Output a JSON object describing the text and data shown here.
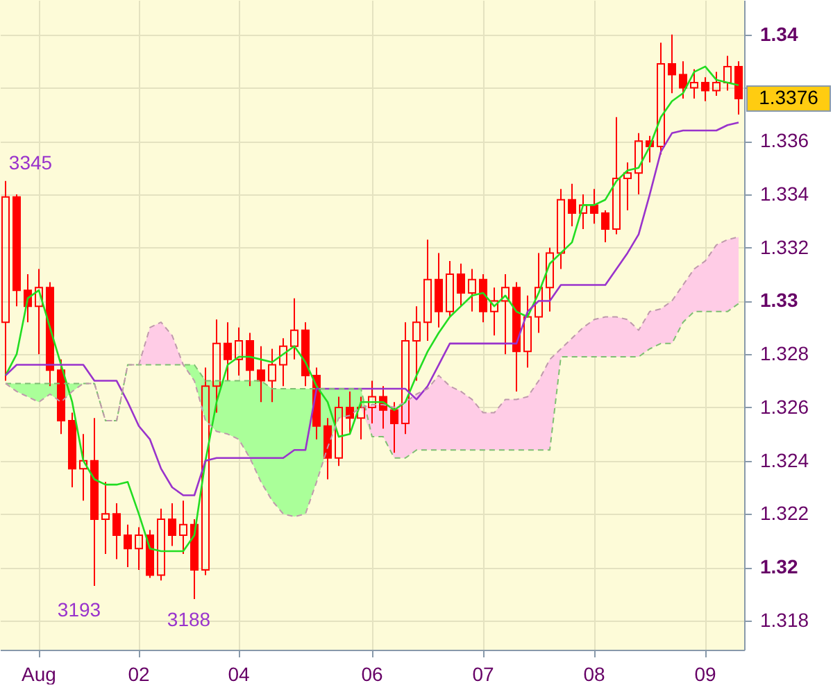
{
  "chart_data": {
    "type": "candlestick",
    "color": "#ff0000",
    "grid": true,
    "categories": [
      null,
      null,
      null,
      "Aug",
      null,
      null,
      null,
      null,
      null,
      null,
      null,
      null,
      "02",
      null,
      null,
      null,
      null,
      null,
      null,
      null,
      null,
      "04",
      null,
      null,
      null,
      null,
      null,
      null,
      null,
      null,
      null,
      null,
      null,
      "06",
      null,
      null,
      null,
      null,
      null,
      null,
      null,
      null,
      null,
      "07",
      null,
      null,
      null,
      null,
      null,
      null,
      null,
      null,
      null,
      "08",
      null,
      null,
      null,
      null,
      null,
      null,
      null,
      null,
      null,
      "09",
      null,
      null,
      null
    ],
    "ohlc": [
      [
        1.3292,
        1.3345,
        1.327,
        1.3339
      ],
      [
        1.3339,
        1.334,
        1.3298,
        1.3304
      ],
      [
        1.3304,
        1.331,
        1.3292,
        1.3298
      ],
      [
        1.3298,
        1.3312,
        1.328,
        1.3305
      ],
      [
        1.3305,
        1.3307,
        1.3268,
        1.3274
      ],
      [
        1.3274,
        1.3278,
        1.325,
        1.3255
      ],
      [
        1.3255,
        1.3258,
        1.323,
        1.3237
      ],
      [
        1.3237,
        1.325,
        1.3225,
        1.324
      ],
      [
        1.324,
        1.3256,
        1.3193,
        1.3218
      ],
      [
        1.3218,
        1.3232,
        1.3205,
        1.322
      ],
      [
        1.322,
        1.3224,
        1.3203,
        1.3212
      ],
      [
        1.3212,
        1.3216,
        1.32,
        1.3207
      ],
      [
        1.3207,
        1.3215,
        1.3199,
        1.3212
      ],
      [
        1.3212,
        1.3214,
        1.3196,
        1.3197
      ],
      [
        1.3197,
        1.3222,
        1.3195,
        1.3218
      ],
      [
        1.3218,
        1.3224,
        1.3208,
        1.3212
      ],
      [
        1.3212,
        1.3225,
        1.3205,
        1.3216
      ],
      [
        1.3216,
        1.3218,
        1.3188,
        1.3199
      ],
      [
        1.3199,
        1.3275,
        1.3197,
        1.3268
      ],
      [
        1.3268,
        1.3293,
        1.3258,
        1.3284
      ],
      [
        1.3284,
        1.3292,
        1.327,
        1.3278
      ],
      [
        1.3278,
        1.329,
        1.3272,
        1.3285
      ],
      [
        1.3285,
        1.3288,
        1.3268,
        1.3274
      ],
      [
        1.3274,
        1.3283,
        1.3262,
        1.327
      ],
      [
        1.327,
        1.3282,
        1.3262,
        1.3276
      ],
      [
        1.3276,
        1.3286,
        1.3268,
        1.3283
      ],
      [
        1.3283,
        1.3301,
        1.3278,
        1.3289
      ],
      [
        1.3289,
        1.3292,
        1.3268,
        1.3272
      ],
      [
        1.3272,
        1.3275,
        1.3248,
        1.3253
      ],
      [
        1.3253,
        1.3256,
        1.3233,
        1.3241
      ],
      [
        1.3241,
        1.3264,
        1.3238,
        1.326
      ],
      [
        1.326,
        1.3266,
        1.325,
        1.3256
      ],
      [
        1.3256,
        1.3264,
        1.3248,
        1.326
      ],
      [
        1.326,
        1.327,
        1.3254,
        1.3264
      ],
      [
        1.3264,
        1.3268,
        1.3252,
        1.3259
      ],
      [
        1.3259,
        1.3262,
        1.3243,
        1.3254
      ],
      [
        1.3254,
        1.3292,
        1.325,
        1.3285
      ],
      [
        1.3285,
        1.3298,
        1.327,
        1.3292
      ],
      [
        1.3292,
        1.3323,
        1.3285,
        1.3308
      ],
      [
        1.3308,
        1.3318,
        1.329,
        1.3296
      ],
      [
        1.3296,
        1.3315,
        1.3294,
        1.331
      ],
      [
        1.331,
        1.3314,
        1.3298,
        1.3303
      ],
      [
        1.3303,
        1.3312,
        1.3296,
        1.3308
      ],
      [
        1.3308,
        1.331,
        1.3292,
        1.3296
      ],
      [
        1.3296,
        1.3305,
        1.3287,
        1.33
      ],
      [
        1.33,
        1.331,
        1.328,
        1.3305
      ],
      [
        1.3305,
        1.3307,
        1.3266,
        1.3281
      ],
      [
        1.3281,
        1.3302,
        1.3275,
        1.3294
      ],
      [
        1.3294,
        1.3318,
        1.3288,
        1.3305
      ],
      [
        1.3305,
        1.332,
        1.3296,
        1.3318
      ],
      [
        1.3318,
        1.3342,
        1.3312,
        1.3338
      ],
      [
        1.3338,
        1.3344,
        1.3328,
        1.3333
      ],
      [
        1.3333,
        1.334,
        1.3327,
        1.3336
      ],
      [
        1.3336,
        1.3342,
        1.3329,
        1.3333
      ],
      [
        1.3333,
        1.3334,
        1.3322,
        1.3327
      ],
      [
        1.3327,
        1.3369,
        1.3325,
        1.3346
      ],
      [
        1.3346,
        1.3352,
        1.3334,
        1.3348
      ],
      [
        1.3348,
        1.3363,
        1.334,
        1.336
      ],
      [
        1.336,
        1.3362,
        1.3352,
        1.3358
      ],
      [
        1.3358,
        1.3397,
        1.3355,
        1.3389
      ],
      [
        1.3389,
        1.34,
        1.3378,
        1.3385
      ],
      [
        1.3385,
        1.339,
        1.3376,
        1.338
      ],
      [
        1.338,
        1.3387,
        1.3376,
        1.3382
      ],
      [
        1.3382,
        1.3384,
        1.3375,
        1.3379
      ],
      [
        1.3379,
        1.3386,
        1.3377,
        1.3382
      ],
      [
        1.3382,
        1.3392,
        1.3379,
        1.3388
      ],
      [
        1.3388,
        1.339,
        1.337,
        1.3376
      ]
    ],
    "series": [
      {
        "type": "line",
        "color": "#22dd22",
        "values": [
          1.3272,
          1.328,
          1.3301,
          1.3304,
          1.329,
          1.3276,
          1.3262,
          1.324,
          1.3233,
          1.3231,
          1.3231,
          1.3232,
          1.322,
          1.3207,
          1.3206,
          1.3206,
          1.3206,
          1.3212,
          1.324,
          1.3262,
          1.3276,
          1.3279,
          1.3279,
          1.3278,
          1.3277,
          1.328,
          1.3283,
          1.3277,
          1.3268,
          1.3262,
          1.3249,
          1.325,
          1.3262,
          1.3262,
          1.3262,
          1.3259,
          1.3262,
          1.3272,
          1.3281,
          1.3288,
          1.3294,
          1.3298,
          1.3302,
          1.3303,
          1.3298,
          1.3302,
          1.3296,
          1.3294,
          1.3303,
          1.3314,
          1.3318,
          1.3322,
          1.3336,
          1.3336,
          1.3338,
          1.3345,
          1.3349,
          1.335,
          1.3358,
          1.3369,
          1.3375,
          1.3378,
          1.3386,
          1.3388,
          1.3383,
          1.3382,
          1.3381
        ]
      },
      {
        "type": "line",
        "color": "#9933cc",
        "values": [
          1.3272,
          1.3276,
          1.3276,
          1.3276,
          1.3276,
          1.3276,
          1.3276,
          1.3276,
          1.327,
          1.327,
          1.327,
          1.3262,
          1.3253,
          1.3248,
          1.3237,
          1.323,
          1.3227,
          1.3227,
          1.324,
          1.3241,
          1.3241,
          1.3241,
          1.3241,
          1.3241,
          1.3241,
          1.3241,
          1.3244,
          1.3244,
          1.3267,
          1.3267,
          1.3267,
          1.3267,
          1.3267,
          1.3267,
          1.3267,
          1.3267,
          1.3267,
          1.3263,
          1.3268,
          1.3276,
          1.3284,
          1.3284,
          1.3284,
          1.3284,
          1.3284,
          1.3284,
          1.3284,
          1.3296,
          1.33,
          1.33,
          1.3306,
          1.3306,
          1.3306,
          1.3306,
          1.3306,
          1.3312,
          1.3318,
          1.3325,
          1.334,
          1.3356,
          1.3363,
          1.3364,
          1.3364,
          1.3364,
          1.3364,
          1.3366,
          1.3367
        ]
      },
      {
        "type": "area",
        "color": "#aaff99",
        "line_style": "dashed",
        "values": [
          1.3269,
          1.3269,
          1.3269,
          1.3269,
          1.3269,
          1.3269,
          1.3269,
          1.3269,
          1.3269,
          1.3255,
          1.3255,
          1.3276,
          1.3276,
          1.3276,
          1.3276,
          1.3276,
          1.3276,
          1.3276,
          1.327,
          1.327,
          1.327,
          1.327,
          1.327,
          1.327,
          1.3267,
          1.3267,
          1.3267,
          1.3267,
          1.3267,
          1.3267,
          1.3267,
          1.3267,
          1.3267,
          1.3249,
          1.3249,
          1.3241,
          1.3241,
          1.3244,
          1.3244,
          1.3244,
          1.3244,
          1.3244,
          1.3244,
          1.3244,
          1.3244,
          1.3244,
          1.3244,
          1.3244,
          1.3244,
          1.3244,
          1.3279,
          1.3279,
          1.3279,
          1.3279,
          1.3279,
          1.3279,
          1.3279,
          1.3279,
          1.3282,
          1.3284,
          1.3284,
          1.3292,
          1.3296,
          1.3296,
          1.3296,
          1.3296,
          1.3299
        ]
      },
      {
        "type": "area",
        "color": "#ffcce6",
        "line_style": "dashed",
        "values": [
          1.3269,
          1.3266,
          1.3264,
          1.3262,
          1.3265,
          1.3262,
          1.3266,
          1.3269,
          1.3269,
          1.3255,
          1.3255,
          1.3276,
          1.3276,
          1.329,
          1.3292,
          1.3287,
          1.3276,
          1.327,
          1.3255,
          1.3251,
          1.325,
          1.3248,
          1.3241,
          1.3232,
          1.3225,
          1.322,
          1.3219,
          1.322,
          1.3232,
          1.3245,
          1.3256,
          1.3257,
          1.326,
          1.3261,
          1.3261,
          1.326,
          1.3262,
          1.3265,
          1.3267,
          1.3272,
          1.3268,
          1.3266,
          1.3263,
          1.3258,
          1.3258,
          1.3263,
          1.3263,
          1.3264,
          1.327,
          1.3278,
          1.3282,
          1.3286,
          1.329,
          1.3293,
          1.3294,
          1.3294,
          1.3293,
          1.3289,
          1.3296,
          1.3297,
          1.33,
          1.3306,
          1.3312,
          1.3315,
          1.3321,
          1.3323,
          1.3324
        ]
      }
    ],
    "ylim": [
      1.3169,
      1.3413
    ],
    "yticks": [
      1.318,
      1.32,
      1.322,
      1.324,
      1.326,
      1.328,
      1.33,
      1.332,
      1.334,
      1.336,
      {
        "value": 1.338,
        "label": null
      },
      1.34
    ],
    "annotations": [
      "3345",
      "3193",
      "3188",
      "1.3376"
    ]
  }
}
